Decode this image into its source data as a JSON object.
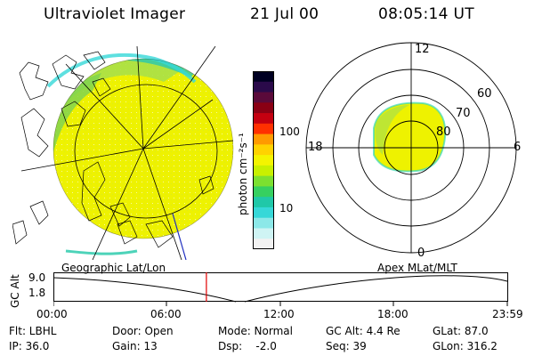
{
  "header": {
    "instrument": "Ultraviolet Imager",
    "date": "21 Jul 00",
    "time": "08:05:14 UT"
  },
  "colorbar": {
    "unit_label": "photon cm⁻²s⁻¹",
    "ticks": [
      "100",
      "10"
    ],
    "colors": [
      "#000022",
      "#2a0a4a",
      "#5a0a3a",
      "#8a0014",
      "#c40010",
      "#ff3000",
      "#ff9a00",
      "#ffd200",
      "#f4f400",
      "#c8f000",
      "#7ce030",
      "#36d060",
      "#20c8a8",
      "#36d8d8",
      "#8ce8e8",
      "#cff4f4",
      "#f2f2f2"
    ]
  },
  "polar_plot": {
    "clock_labels": {
      "top": "12",
      "left": "18",
      "right": "6",
      "bottom": "0"
    },
    "lat_labels": [
      "60",
      "70",
      "80"
    ]
  },
  "timeline": {
    "left_label": "Geographic Lat/Lon",
    "right_label": "Apex MLat/MLT",
    "ylabel": "GC Alt",
    "ticks_y": [
      "9.0",
      "1.8"
    ],
    "ticks_x": [
      "00:00",
      "06:00",
      "12:00",
      "18:00",
      "23:59"
    ],
    "marker_time_hours": 8.09
  },
  "info": {
    "flt": "Flt: LBHL",
    "door": "Door: Open",
    "mode": "Mode: Normal",
    "gc_alt": "GC Alt: 4.4 Re",
    "glat": "GLat:  87.0",
    "ip": "IP: 36.0",
    "gain": "Gain: 13",
    "dsp": "Dsp:    -2.0",
    "seq": "Seq: 39",
    "glon": "GLon: 316.2"
  }
}
